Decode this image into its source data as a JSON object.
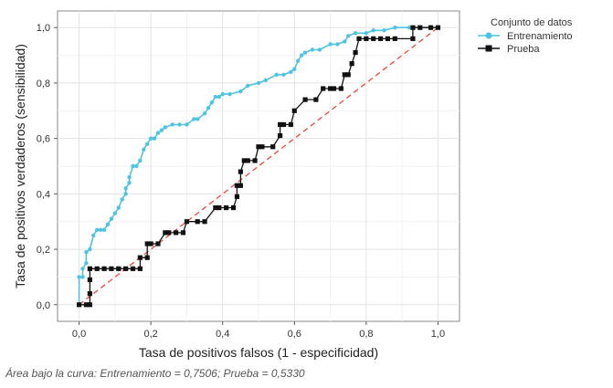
{
  "chart_data": {
    "type": "line",
    "title": "",
    "xlabel": "Tasa de positivos falsos (1 - especificidad)",
    "ylabel": "Tasa de positivos verdaderos (sensibilidad)",
    "xlim": [
      -0.06,
      1.06
    ],
    "ylim": [
      -0.06,
      1.06
    ],
    "x_ticks": [
      "0,0",
      "0,2",
      "0,4",
      "0,6",
      "0,8",
      "1,0"
    ],
    "y_ticks": [
      "0,0",
      "0,2",
      "0,4",
      "0,6",
      "0,8",
      "1,0"
    ],
    "grid": true,
    "legend_title": "Conjunto de datos",
    "legend_position": "top-right",
    "reference_line": {
      "x": [
        0,
        1
      ],
      "y": [
        0,
        1
      ],
      "style": "dashed",
      "color": "#e8483b"
    },
    "series": [
      {
        "name": "Entrenamiento",
        "color": "#4fc3e2",
        "marker": "circle",
        "x": [
          0.0,
          0.0,
          0.01,
          0.01,
          0.02,
          0.02,
          0.03,
          0.04,
          0.05,
          0.06,
          0.07,
          0.08,
          0.09,
          0.1,
          0.11,
          0.12,
          0.13,
          0.13,
          0.14,
          0.14,
          0.15,
          0.15,
          0.16,
          0.17,
          0.18,
          0.19,
          0.2,
          0.21,
          0.22,
          0.23,
          0.24,
          0.26,
          0.28,
          0.3,
          0.32,
          0.33,
          0.35,
          0.36,
          0.37,
          0.38,
          0.39,
          0.4,
          0.42,
          0.45,
          0.47,
          0.5,
          0.52,
          0.55,
          0.57,
          0.59,
          0.6,
          0.61,
          0.62,
          0.63,
          0.65,
          0.67,
          0.7,
          0.72,
          0.74,
          0.75,
          0.77,
          0.8,
          0.82,
          0.85,
          0.88,
          0.92,
          0.95,
          1.0
        ],
        "y": [
          0.0,
          0.1,
          0.1,
          0.13,
          0.15,
          0.19,
          0.2,
          0.25,
          0.27,
          0.27,
          0.27,
          0.29,
          0.31,
          0.33,
          0.35,
          0.38,
          0.4,
          0.42,
          0.44,
          0.46,
          0.5,
          0.5,
          0.5,
          0.52,
          0.56,
          0.58,
          0.6,
          0.6,
          0.62,
          0.63,
          0.64,
          0.65,
          0.65,
          0.65,
          0.67,
          0.67,
          0.69,
          0.71,
          0.73,
          0.75,
          0.75,
          0.76,
          0.76,
          0.77,
          0.79,
          0.8,
          0.81,
          0.83,
          0.83,
          0.84,
          0.85,
          0.88,
          0.9,
          0.91,
          0.92,
          0.92,
          0.94,
          0.94,
          0.95,
          0.97,
          0.98,
          0.98,
          0.99,
          0.99,
          1.0,
          1.0,
          1.0,
          1.0
        ]
      },
      {
        "name": "Prueba",
        "color": "#111111",
        "marker": "square",
        "x": [
          0.0,
          0.02,
          0.03,
          0.03,
          0.03,
          0.03,
          0.05,
          0.07,
          0.09,
          0.11,
          0.13,
          0.15,
          0.17,
          0.17,
          0.19,
          0.19,
          0.2,
          0.22,
          0.24,
          0.25,
          0.27,
          0.29,
          0.3,
          0.33,
          0.35,
          0.38,
          0.39,
          0.41,
          0.43,
          0.44,
          0.44,
          0.45,
          0.45,
          0.46,
          0.47,
          0.49,
          0.5,
          0.51,
          0.54,
          0.56,
          0.56,
          0.57,
          0.59,
          0.6,
          0.63,
          0.66,
          0.68,
          0.7,
          0.71,
          0.73,
          0.74,
          0.75,
          0.76,
          0.77,
          0.78,
          0.8,
          0.82,
          0.84,
          0.86,
          0.88,
          0.93,
          0.93,
          0.95,
          0.98,
          1.0
        ],
        "y": [
          0.0,
          0.0,
          0.0,
          0.04,
          0.09,
          0.13,
          0.13,
          0.13,
          0.13,
          0.13,
          0.13,
          0.13,
          0.13,
          0.17,
          0.17,
          0.22,
          0.22,
          0.22,
          0.26,
          0.26,
          0.26,
          0.26,
          0.3,
          0.3,
          0.3,
          0.35,
          0.35,
          0.35,
          0.35,
          0.39,
          0.43,
          0.43,
          0.48,
          0.52,
          0.52,
          0.52,
          0.57,
          0.57,
          0.57,
          0.61,
          0.65,
          0.65,
          0.65,
          0.7,
          0.74,
          0.74,
          0.78,
          0.78,
          0.78,
          0.78,
          0.83,
          0.83,
          0.87,
          0.91,
          0.96,
          0.96,
          0.96,
          0.96,
          0.96,
          0.96,
          0.96,
          1.0,
          1.0,
          1.0,
          1.0
        ]
      }
    ]
  },
  "footnote": "Área bajo la curva: Entrenamiento = 0,7506; Prueba = 0,5330"
}
